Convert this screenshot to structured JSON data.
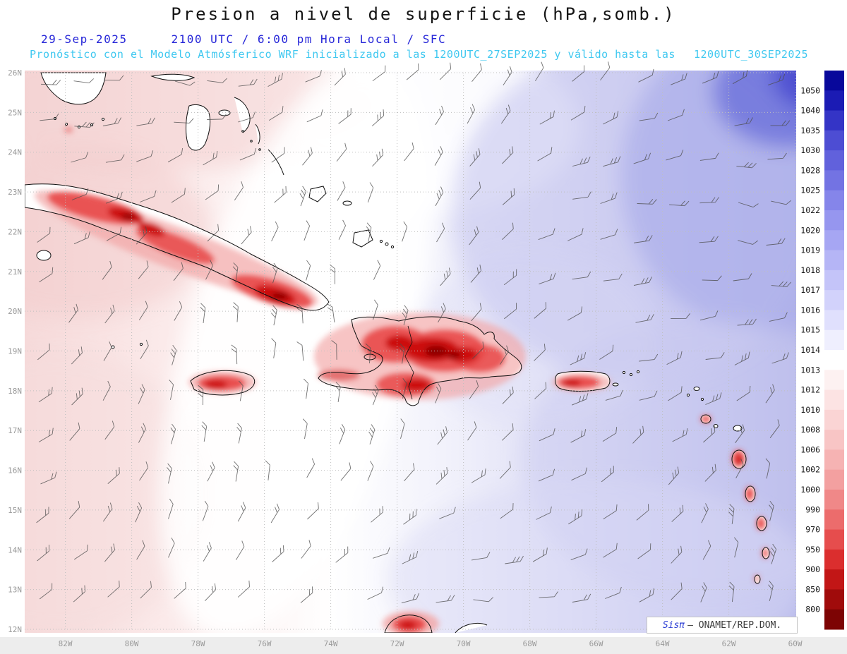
{
  "header": {
    "title": "Presion a nivel de superficie (hPa,somb.)",
    "date": "29-Sep-2025",
    "valid_time": "2100 UTC / 6:00 pm Hora Local / SFC",
    "forecast_note": "Pronóstico con el Modelo Atmósferico WRF inicializado a las 1200UTC_27SEP2025 y válido hasta las",
    "forecast_valid_until": "1200UTC_30SEP2025"
  },
  "map": {
    "lat_labels": [
      "26N",
      "25N",
      "24N",
      "23N",
      "22N",
      "21N",
      "20N",
      "19N",
      "18N",
      "17N",
      "16N",
      "15N",
      "14N",
      "13N",
      "12N"
    ],
    "lon_labels": [
      "82W",
      "80W",
      "78W",
      "76W",
      "74W",
      "72W",
      "70W",
      "68W",
      "66W",
      "64W",
      "62W",
      "60W"
    ]
  },
  "colorbar": {
    "unit": "hPa",
    "labels": [
      "1050",
      "1040",
      "1035",
      "1030",
      "1028",
      "1025",
      "1022",
      "1020",
      "1019",
      "1018",
      "1017",
      "1016",
      "1015",
      "1014",
      "1013",
      "1012",
      "1010",
      "1008",
      "1006",
      "1002",
      "1000",
      "990",
      "970",
      "950",
      "900",
      "850",
      "800"
    ],
    "colors": [
      "#08089b",
      "#1b1bb4",
      "#3434c6",
      "#4d4dd3",
      "#6161dc",
      "#7373e3",
      "#8585ea",
      "#9696ef",
      "#a6a6f3",
      "#b5b5f6",
      "#c4c4f9",
      "#d2d2fb",
      "#e0e0fd",
      "#efeffe",
      "#ffffff",
      "#fdf1f1",
      "#fce3e3",
      "#fad4d4",
      "#f8c5c5",
      "#f6b3b3",
      "#f3a0a0",
      "#f08888",
      "#ec6c6c",
      "#e64d4d",
      "#db2e2e",
      "#c21616",
      "#a00b0b",
      "#7d0404"
    ]
  },
  "watermark": {
    "brand": "Sisπ",
    "org": "— ONAMET/REP.DOM."
  }
}
